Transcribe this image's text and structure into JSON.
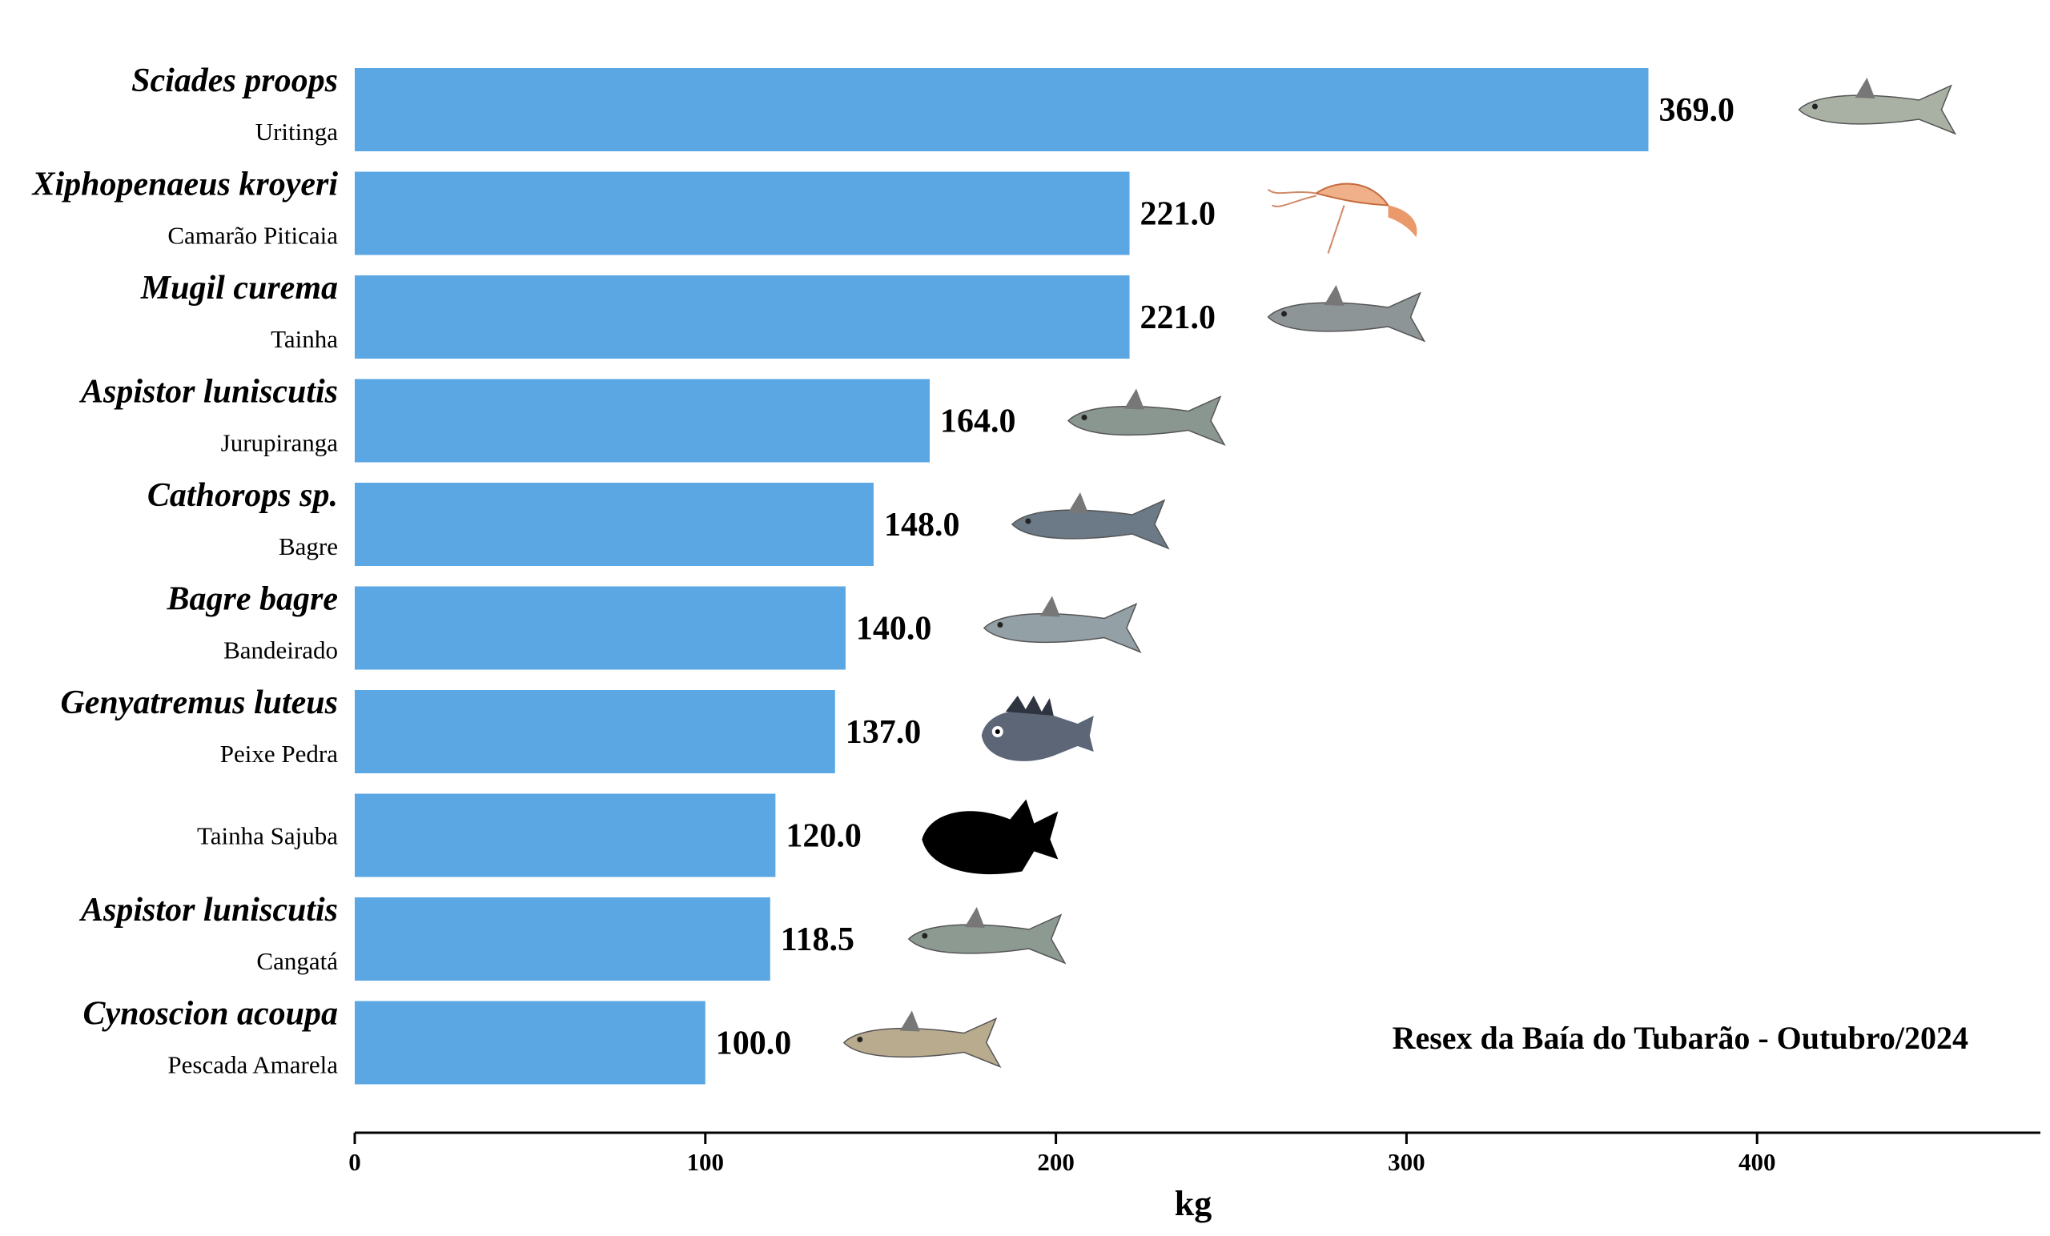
{
  "chart_data": {
    "type": "bar",
    "orientation": "horizontal",
    "categories": [
      {
        "scientific": "Sciades proops",
        "common": "Uritinga",
        "icon": "catfish-icon"
      },
      {
        "scientific": "Xiphopenaeus kroyeri",
        "common": "Camarão Piticaia",
        "icon": "shrimp-icon"
      },
      {
        "scientific": "Mugil curema",
        "common": "Tainha",
        "icon": "mullet-icon"
      },
      {
        "scientific": "Aspistor luniscutis",
        "common": "Jurupiranga",
        "icon": "catfish-icon"
      },
      {
        "scientific": "Cathorops sp.",
        "common": "Bagre",
        "icon": "catfish-icon"
      },
      {
        "scientific": "Bagre bagre",
        "common": "Bandeirado",
        "icon": "catfish-icon"
      },
      {
        "scientific": "Genyatremus luteus",
        "common": "Peixe Pedra",
        "icon": "grunt-fish-icon"
      },
      {
        "scientific": "",
        "common": "Tainha Sajuba",
        "icon": "fish-silhouette-icon"
      },
      {
        "scientific": "Aspistor luniscutis",
        "common": "Cangatá",
        "icon": "catfish-icon"
      },
      {
        "scientific": "Cynoscion acoupa",
        "common": "Pescada Amarela",
        "icon": "weakfish-icon"
      }
    ],
    "values": [
      369.0,
      221.0,
      221.0,
      164.0,
      148.0,
      140.0,
      137.0,
      120.0,
      118.5,
      100.0
    ],
    "value_labels": [
      "369.0",
      "221.0",
      "221.0",
      "164.0",
      "148.0",
      "140.0",
      "137.0",
      "120.0",
      "118.5",
      "100.0"
    ],
    "xlabel": "kg",
    "xlim": [
      0,
      480
    ],
    "xticks": [
      0,
      100,
      200,
      300,
      400
    ],
    "bar_color": "#5aa7e4",
    "grid": false,
    "annotation": "Resex da Baía do Tubarão - Outubro/2024"
  }
}
